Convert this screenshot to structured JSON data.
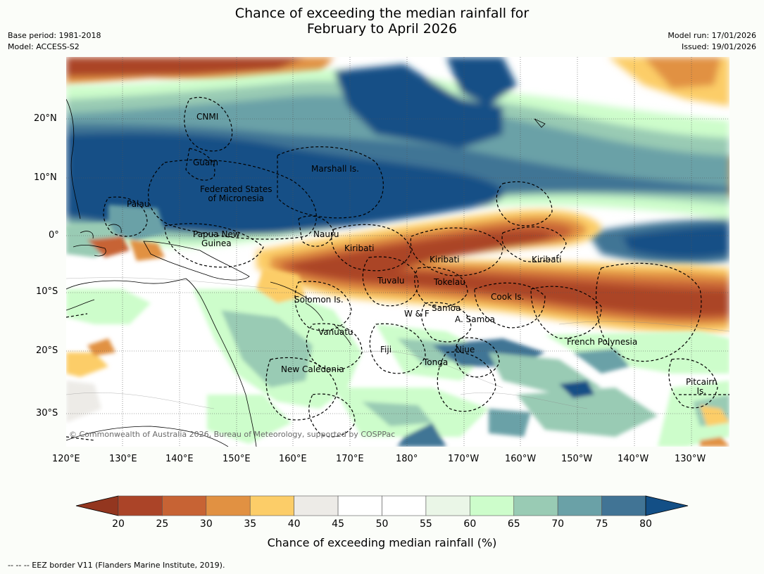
{
  "title_line1": "Chance of exceeding the median rainfall for",
  "title_line2": "February to April 2026",
  "meta_left": [
    "Base period: 1981-2018",
    "Model: ACCESS-S2"
  ],
  "meta_right": [
    "Model run: 17/01/2026",
    "Issued: 19/01/2026"
  ],
  "lat_labels": [
    "20°N",
    "10°N",
    "0°",
    "10°S",
    "20°S",
    "30°S"
  ],
  "lon_labels": [
    "120°E",
    "130°E",
    "140°E",
    "150°E",
    "160°E",
    "170°E",
    "180°",
    "170°W",
    "160°W",
    "150°W",
    "140°W",
    "130°W"
  ],
  "regions": [
    "CNMI",
    "Guam",
    "Marshall Is.",
    "Federated States\nof Micronesia",
    "Palau",
    "Papua New\nGuinea",
    "Nauru",
    "Kiribati",
    "Kiribati",
    "Kiribati",
    "Tuvalu",
    "Tokelau",
    "Cook Is.",
    "Solomon Is.",
    "Samoa",
    "W & F",
    "A. Samoa",
    "Vanuatu",
    "Fiji",
    "Niue",
    "French Polynesia",
    "Tonga",
    "New Caledonia",
    "Pitcairn\nIs."
  ],
  "credit": "© Commonwealth of Australia 2026, Bureau of Meteorology, supported by COSPPac",
  "colorbar": {
    "ticks": [
      "20",
      "25",
      "30",
      "35",
      "40",
      "45",
      "50",
      "55",
      "60",
      "65",
      "70",
      "75",
      "80"
    ],
    "colors": [
      "#ab4428",
      "#c76334",
      "#e19142",
      "#fccd68",
      "#edebe7",
      "#ffffff",
      "#ffffff",
      "#eaf6e7",
      "#cdfdcb",
      "#99cbb4",
      "#6aa1a7",
      "#417495"
    ],
    "under_color": "#93361f",
    "over_color": "#134f86",
    "label": "Chance of exceeding median rainfall (%)"
  },
  "footer": "--  --  -- EEZ border V11 (Flanders Marine Institute, 2019)."
}
